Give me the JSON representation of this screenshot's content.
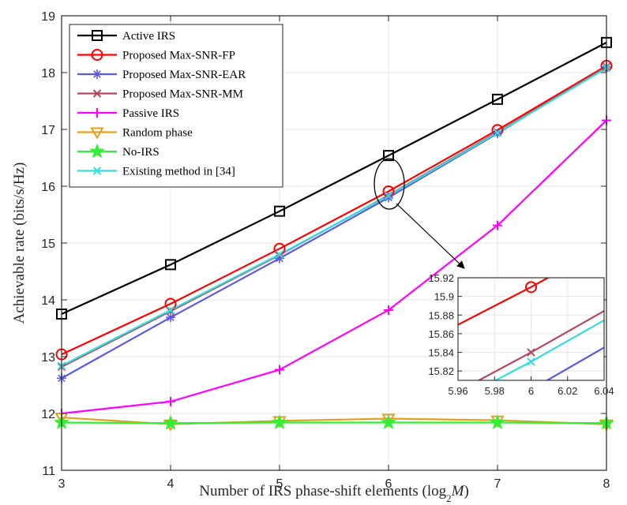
{
  "chart_data": {
    "type": "line",
    "title": "",
    "xlabel": "Number of IRS phase-shift elements (log",
    "xlabel_sub": "2",
    "xlabel_var": "M",
    "xlabel_close": ")",
    "ylabel": "Achievable rate (bits/s/Hz)",
    "x": [
      3,
      4,
      5,
      6,
      7,
      8
    ],
    "xlim": [
      3,
      8
    ],
    "ylim": [
      11,
      19
    ],
    "xticks": [
      "3",
      "4",
      "5",
      "6",
      "7",
      "8"
    ],
    "yticks": [
      "11",
      "12",
      "13",
      "14",
      "15",
      "16",
      "17",
      "18",
      "19"
    ],
    "legend_position": "top-left",
    "series": [
      {
        "name": "Active IRS",
        "color": "#000000",
        "marker": "square",
        "values": [
          13.75,
          14.62,
          15.56,
          16.54,
          17.53,
          18.53
        ]
      },
      {
        "name": "Proposed Max-SNR-FP",
        "color": "#ff0000",
        "marker": "circle",
        "values": [
          13.04,
          13.93,
          14.9,
          15.91,
          16.99,
          18.12
        ]
      },
      {
        "name": "Proposed Max-SNR-EAR",
        "color": "#5a5ae6",
        "marker": "asterisk",
        "values": [
          12.62,
          13.69,
          14.73,
          15.8,
          16.93,
          18.1
        ]
      },
      {
        "name": "Proposed Max-SNR-MM",
        "color": "#b5475c",
        "marker": "x",
        "values": [
          12.82,
          13.8,
          14.79,
          15.84,
          16.95,
          18.1
        ]
      },
      {
        "name": "Passive IRS",
        "color": "#ff00ff",
        "marker": "plus",
        "values": [
          12.0,
          12.21,
          12.77,
          13.82,
          15.31,
          17.16
        ]
      },
      {
        "name": "Random phase",
        "color": "#e0a020",
        "marker": "triangle-down",
        "values": [
          11.93,
          11.81,
          11.87,
          11.91,
          11.88,
          11.81
        ]
      },
      {
        "name": "No-IRS",
        "color": "#33ee33",
        "marker": "star",
        "values": [
          11.84,
          11.83,
          11.84,
          11.84,
          11.84,
          11.83
        ]
      },
      {
        "name": "Existing method in [34]",
        "color": "#33dddd",
        "marker": "x",
        "values": [
          12.84,
          13.82,
          14.8,
          15.83,
          16.94,
          18.08
        ]
      }
    ],
    "inset": {
      "xlim": [
        5.96,
        6.04
      ],
      "ylim": [
        15.81,
        15.92
      ],
      "xticks": [
        "5.96",
        "5.98",
        "6",
        "6.02",
        "6.04"
      ],
      "yticks": [
        "15.82",
        "15.84",
        "15.86",
        "15.88",
        "15.9",
        "15.92"
      ],
      "zoom_center": [
        6,
        15.85
      ]
    }
  }
}
